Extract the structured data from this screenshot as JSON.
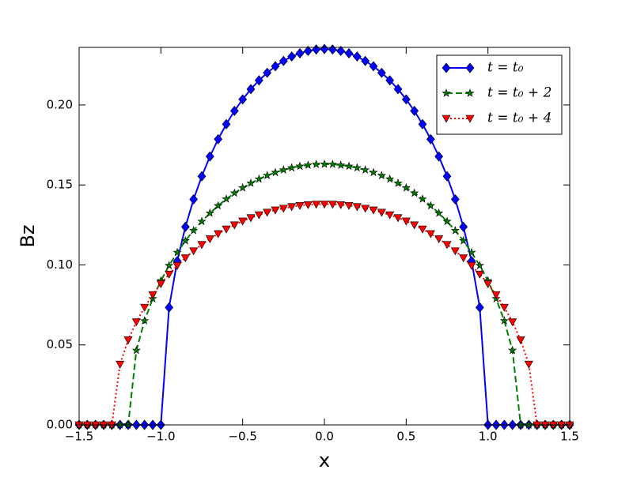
{
  "chart_data": {
    "type": "line",
    "x": [
      -1.5,
      -1.45,
      -1.4,
      -1.35,
      -1.3,
      -1.25,
      -1.2,
      -1.15,
      -1.1,
      -1.05,
      -1.0,
      -0.95,
      -0.9,
      -0.85,
      -0.8,
      -0.75,
      -0.7,
      -0.65,
      -0.6,
      -0.55,
      -0.5,
      -0.45,
      -0.4,
      -0.35,
      -0.3,
      -0.25,
      -0.2,
      -0.15,
      -0.1,
      -0.05,
      0,
      0.05,
      0.1,
      0.15,
      0.2,
      0.25,
      0.3,
      0.35,
      0.4,
      0.45,
      0.5,
      0.55,
      0.6,
      0.65,
      0.7,
      0.75,
      0.8,
      0.85,
      0.9,
      0.95,
      1.0,
      1.05,
      1.1,
      1.15,
      1.2,
      1.25,
      1.3,
      1.35,
      1.4,
      1.45,
      1.5
    ],
    "series": [
      {
        "name": "t = t₀",
        "color": "#0000ff",
        "marker": "diamond",
        "linestyle": "solid",
        "values": [
          0,
          0,
          0,
          0,
          0,
          0,
          0,
          0,
          0,
          0,
          0,
          0.0734,
          0.1024,
          0.1238,
          0.141,
          0.1554,
          0.1678,
          0.1786,
          0.188,
          0.1963,
          0.2035,
          0.2099,
          0.2154,
          0.2201,
          0.2242,
          0.2275,
          0.2303,
          0.2323,
          0.2338,
          0.2347,
          0.235,
          0.2347,
          0.2338,
          0.2323,
          0.2303,
          0.2275,
          0.2242,
          0.2201,
          0.2154,
          0.2099,
          0.2035,
          0.1963,
          0.188,
          0.1786,
          0.1678,
          0.1554,
          0.141,
          0.1238,
          0.1024,
          0.0734,
          0,
          0,
          0,
          0,
          0,
          0,
          0,
          0,
          0,
          0,
          0
        ]
      },
      {
        "name": "t = t₀ + 2",
        "color": "#007f00",
        "marker": "star",
        "linestyle": "dashed",
        "values": [
          0,
          0,
          0,
          0,
          0,
          0,
          0,
          0.0466,
          0.0651,
          0.0789,
          0.0901,
          0.0996,
          0.1078,
          0.1151,
          0.1215,
          0.1272,
          0.1324,
          0.137,
          0.1412,
          0.1449,
          0.1482,
          0.1511,
          0.1537,
          0.1559,
          0.1578,
          0.1594,
          0.1607,
          0.1617,
          0.1624,
          0.1629,
          0.163,
          0.1629,
          0.1624,
          0.1617,
          0.1607,
          0.1594,
          0.1578,
          0.1559,
          0.1537,
          0.1511,
          0.1482,
          0.1449,
          0.1412,
          0.137,
          0.1324,
          0.1272,
          0.1215,
          0.1151,
          0.1078,
          0.0996,
          0.0901,
          0.0789,
          0.0651,
          0.0466,
          0,
          0,
          0,
          0,
          0,
          0,
          0
        ]
      },
      {
        "name": "t = t₀ + 4",
        "color": "#ff0000",
        "marker": "triangle-down",
        "linestyle": "dotted",
        "values": [
          0,
          0,
          0,
          0,
          0,
          0.0379,
          0.0531,
          0.0644,
          0.0735,
          0.0814,
          0.0882,
          0.0942,
          0.0996,
          0.1044,
          0.1088,
          0.1127,
          0.1163,
          0.1195,
          0.1224,
          0.125,
          0.1274,
          0.1295,
          0.1313,
          0.1329,
          0.1343,
          0.1354,
          0.1364,
          0.1371,
          0.1376,
          0.1379,
          0.138,
          0.1379,
          0.1376,
          0.1371,
          0.1364,
          0.1354,
          0.1343,
          0.1329,
          0.1313,
          0.1295,
          0.1274,
          0.125,
          0.1224,
          0.1195,
          0.1163,
          0.1127,
          0.1088,
          0.1044,
          0.0996,
          0.0942,
          0.0882,
          0.0814,
          0.0735,
          0.0644,
          0.0531,
          0.0379,
          0,
          0,
          0,
          0,
          0
        ]
      }
    ],
    "xlabel": "x",
    "ylabel": "Bz",
    "xlim": [
      -1.5,
      1.5
    ],
    "ylim": [
      0,
      0.236
    ],
    "xticks": [
      {
        "value": -1.5,
        "label": "−1.5"
      },
      {
        "value": -1,
        "label": "−1.0"
      },
      {
        "value": -0.5,
        "label": "−0.5"
      },
      {
        "value": 0,
        "label": "0.0"
      },
      {
        "value": 0.5,
        "label": "0.5"
      },
      {
        "value": 1,
        "label": "1.0"
      },
      {
        "value": 1.5,
        "label": "1.5"
      }
    ],
    "yticks": [
      {
        "value": 0,
        "label": "0.00"
      },
      {
        "value": 0.05,
        "label": "0.05"
      },
      {
        "value": 0.1,
        "label": "0.10"
      },
      {
        "value": 0.15,
        "label": "0.15"
      },
      {
        "value": 0.2,
        "label": "0.20"
      }
    ],
    "legend": "upper right",
    "grid": false
  }
}
